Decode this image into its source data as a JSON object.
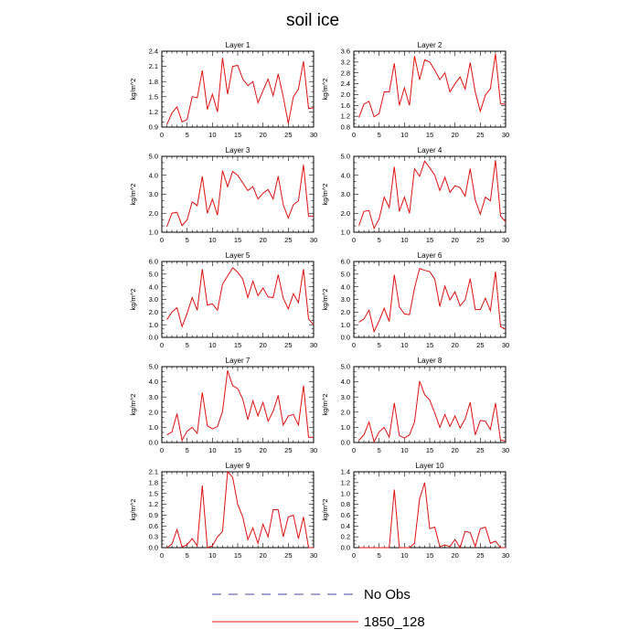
{
  "title": "soil ice",
  "legend": [
    {
      "label": "No Obs",
      "color": "#4a4ab0",
      "dash": true
    },
    {
      "label": "1850_128",
      "color": "#e01010",
      "dash": false
    }
  ],
  "chart_data": [
    {
      "type": "line",
      "title": "Layer 1",
      "ylabel": "kg/m^2",
      "xlim": [
        0,
        30
      ],
      "ylim": [
        0.9,
        2.4
      ],
      "xticks": [
        0,
        5,
        10,
        15,
        20,
        25,
        30
      ],
      "yticks": [
        0.9,
        1.2,
        1.5,
        1.8,
        2.1,
        2.4
      ],
      "ytick_labels": [
        "0.9",
        "1.2",
        "1.5",
        "1.8",
        "2.1",
        "2.4"
      ],
      "series": [
        {
          "name": "1850_128",
          "x": [
            1,
            2,
            3,
            4,
            5,
            6,
            7,
            8,
            9,
            10,
            11,
            12,
            13,
            14,
            15,
            16,
            17,
            18,
            19,
            20,
            21,
            22,
            23,
            24,
            25,
            26,
            27,
            28,
            29,
            30
          ],
          "values": [
            0.95,
            1.18,
            1.3,
            1.0,
            1.05,
            1.5,
            1.48,
            2.02,
            1.25,
            1.55,
            1.2,
            2.27,
            1.55,
            2.1,
            2.12,
            1.85,
            1.72,
            1.8,
            1.38,
            1.62,
            1.85,
            1.52,
            1.95,
            1.5,
            0.97,
            1.5,
            1.65,
            2.2,
            1.27,
            1.28
          ]
        }
      ]
    },
    {
      "type": "line",
      "title": "Layer 2",
      "ylabel": "kg/m^2",
      "xlim": [
        0,
        30
      ],
      "ylim": [
        0.8,
        3.6
      ],
      "xticks": [
        0,
        5,
        10,
        15,
        20,
        25,
        30
      ],
      "yticks": [
        0.8,
        1.2,
        1.6,
        2.0,
        2.4,
        2.8,
        3.2,
        3.6
      ],
      "ytick_labels": [
        "0.8",
        "1.2",
        "1.6",
        "2.0",
        "2.4",
        "2.8",
        "3.2",
        "3.6"
      ],
      "series": [
        {
          "name": "1850_128",
          "x": [
            1,
            2,
            3,
            4,
            5,
            6,
            7,
            8,
            9,
            10,
            11,
            12,
            13,
            14,
            15,
            16,
            17,
            18,
            19,
            20,
            21,
            22,
            23,
            24,
            25,
            26,
            27,
            28,
            29,
            30
          ],
          "values": [
            1.15,
            1.65,
            1.75,
            1.18,
            1.3,
            2.1,
            2.1,
            3.15,
            1.6,
            2.25,
            1.6,
            3.42,
            2.55,
            3.28,
            3.2,
            2.9,
            2.55,
            2.8,
            2.1,
            2.4,
            2.65,
            2.2,
            3.18,
            2.1,
            1.38,
            1.98,
            2.22,
            3.5,
            1.65,
            1.65
          ]
        }
      ]
    },
    {
      "type": "line",
      "title": "Layer 3",
      "ylabel": "kg/m^2",
      "xlim": [
        0,
        30
      ],
      "ylim": [
        1.0,
        5.0
      ],
      "xticks": [
        0,
        5,
        10,
        15,
        20,
        25,
        30
      ],
      "yticks": [
        1.0,
        2.0,
        3.0,
        4.0,
        5.0
      ],
      "ytick_labels": [
        "1.0",
        "2.0",
        "3.0",
        "4.0",
        "5.0"
      ],
      "series": [
        {
          "name": "1850_128",
          "x": [
            1,
            2,
            3,
            4,
            5,
            6,
            7,
            8,
            9,
            10,
            11,
            12,
            13,
            14,
            15,
            16,
            17,
            18,
            19,
            20,
            21,
            22,
            23,
            24,
            25,
            26,
            27,
            28,
            29,
            30
          ],
          "values": [
            1.3,
            2.0,
            2.05,
            1.35,
            1.65,
            2.6,
            2.4,
            3.95,
            2.0,
            2.75,
            1.9,
            4.25,
            3.4,
            4.2,
            4.0,
            3.6,
            3.2,
            3.4,
            2.75,
            3.05,
            3.25,
            2.75,
            3.95,
            2.45,
            1.75,
            2.45,
            2.65,
            4.55,
            1.85,
            1.85
          ]
        }
      ]
    },
    {
      "type": "line",
      "title": "Layer 4",
      "ylabel": "kg/m^2",
      "xlim": [
        0,
        30
      ],
      "ylim": [
        1.0,
        5.0
      ],
      "xticks": [
        0,
        5,
        10,
        15,
        20,
        25,
        30
      ],
      "yticks": [
        1.0,
        2.0,
        3.0,
        4.0,
        5.0
      ],
      "ytick_labels": [
        "1.0",
        "2.0",
        "3.0",
        "4.0",
        "5.0"
      ],
      "series": [
        {
          "name": "1850_128",
          "x": [
            1,
            2,
            3,
            4,
            5,
            6,
            7,
            8,
            9,
            10,
            11,
            12,
            13,
            14,
            15,
            16,
            17,
            18,
            19,
            20,
            21,
            22,
            23,
            24,
            25,
            26,
            27,
            28,
            29,
            30
          ],
          "values": [
            1.35,
            2.1,
            2.15,
            1.2,
            1.7,
            2.85,
            2.3,
            4.45,
            2.1,
            2.85,
            2.0,
            4.35,
            3.95,
            4.75,
            4.4,
            4.0,
            3.2,
            3.9,
            3.1,
            3.45,
            3.35,
            2.9,
            4.35,
            2.7,
            1.95,
            2.85,
            2.65,
            4.8,
            1.85,
            1.55
          ]
        }
      ]
    },
    {
      "type": "line",
      "title": "Layer 5",
      "ylabel": "kg/m^2",
      "xlim": [
        0,
        30
      ],
      "ylim": [
        0.0,
        6.0
      ],
      "xticks": [
        0,
        5,
        10,
        15,
        20,
        25,
        30
      ],
      "yticks": [
        0.0,
        1.0,
        2.0,
        3.0,
        4.0,
        5.0,
        6.0
      ],
      "ytick_labels": [
        "0.0",
        "1.0",
        "2.0",
        "3.0",
        "4.0",
        "5.0",
        "6.0"
      ],
      "series": [
        {
          "name": "1850_128",
          "x": [
            1,
            2,
            3,
            4,
            5,
            6,
            7,
            8,
            9,
            10,
            11,
            12,
            13,
            14,
            15,
            16,
            17,
            18,
            19,
            20,
            21,
            22,
            23,
            24,
            25,
            26,
            27,
            28,
            29,
            30
          ],
          "values": [
            1.4,
            2.0,
            2.35,
            0.85,
            1.9,
            3.15,
            2.15,
            5.4,
            2.55,
            2.65,
            2.15,
            4.2,
            4.85,
            5.5,
            5.15,
            4.6,
            3.15,
            4.45,
            3.3,
            3.9,
            3.2,
            3.15,
            4.95,
            3.1,
            2.25,
            3.45,
            2.75,
            5.4,
            1.45,
            1.0
          ]
        }
      ]
    },
    {
      "type": "line",
      "title": "Layer 6",
      "ylabel": "kg/m^2",
      "xlim": [
        0,
        30
      ],
      "ylim": [
        0.0,
        6.0
      ],
      "xticks": [
        0,
        5,
        10,
        15,
        20,
        25,
        30
      ],
      "yticks": [
        0.0,
        1.0,
        2.0,
        3.0,
        4.0,
        5.0,
        6.0
      ],
      "ytick_labels": [
        "0.0",
        "1.0",
        "2.0",
        "3.0",
        "4.0",
        "5.0",
        "6.0"
      ],
      "series": [
        {
          "name": "1850_128",
          "x": [
            1,
            2,
            3,
            4,
            5,
            6,
            7,
            8,
            9,
            10,
            11,
            12,
            13,
            14,
            15,
            16,
            17,
            18,
            19,
            20,
            21,
            22,
            23,
            24,
            25,
            26,
            27,
            28,
            29,
            30
          ],
          "values": [
            1.2,
            1.45,
            2.15,
            0.45,
            1.3,
            2.3,
            1.25,
            4.95,
            2.4,
            1.85,
            1.8,
            3.9,
            5.45,
            5.3,
            5.2,
            4.6,
            2.45,
            4.05,
            2.95,
            3.6,
            2.5,
            2.95,
            4.65,
            2.2,
            2.2,
            3.1,
            2.1,
            5.2,
            0.85,
            0.65
          ]
        }
      ]
    },
    {
      "type": "line",
      "title": "Layer 7",
      "ylabel": "kg/m^2",
      "xlim": [
        0,
        30
      ],
      "ylim": [
        0.0,
        5.0
      ],
      "xticks": [
        0,
        5,
        10,
        15,
        20,
        25,
        30
      ],
      "yticks": [
        0.0,
        1.0,
        2.0,
        3.0,
        4.0,
        5.0
      ],
      "ytick_labels": [
        "0.0",
        "1.0",
        "2.0",
        "3.0",
        "4.0",
        "5.0"
      ],
      "series": [
        {
          "name": "1850_128",
          "x": [
            1,
            2,
            3,
            4,
            5,
            6,
            7,
            8,
            9,
            10,
            11,
            12,
            13,
            14,
            15,
            16,
            17,
            18,
            19,
            20,
            21,
            22,
            23,
            24,
            25,
            26,
            27,
            28,
            29,
            30
          ],
          "values": [
            0.5,
            0.7,
            1.9,
            0.15,
            0.75,
            1.0,
            0.6,
            3.3,
            1.1,
            0.9,
            1.05,
            2.05,
            4.75,
            3.75,
            3.55,
            2.85,
            1.5,
            2.75,
            1.75,
            2.65,
            1.4,
            2.05,
            3.1,
            1.15,
            1.75,
            1.85,
            1.15,
            3.75,
            0.35,
            0.35
          ]
        }
      ]
    },
    {
      "type": "line",
      "title": "Layer 8",
      "ylabel": "kg/m^2",
      "xlim": [
        0,
        30
      ],
      "ylim": [
        0.0,
        5.0
      ],
      "xticks": [
        0,
        5,
        10,
        15,
        20,
        25,
        30
      ],
      "yticks": [
        0.0,
        1.0,
        2.0,
        3.0,
        4.0,
        5.0
      ],
      "ytick_labels": [
        "0.0",
        "1.0",
        "2.0",
        "3.0",
        "4.0",
        "5.0"
      ],
      "series": [
        {
          "name": "1850_128",
          "x": [
            1,
            2,
            3,
            4,
            5,
            6,
            7,
            8,
            9,
            10,
            11,
            12,
            13,
            14,
            15,
            16,
            17,
            18,
            19,
            20,
            21,
            22,
            23,
            24,
            25,
            26,
            27,
            28,
            29,
            30
          ],
          "values": [
            0.15,
            0.5,
            1.35,
            0.05,
            0.7,
            1.0,
            0.35,
            2.6,
            0.45,
            0.3,
            0.5,
            1.35,
            4.05,
            3.15,
            2.8,
            1.95,
            1.0,
            1.85,
            1.05,
            1.75,
            0.95,
            1.55,
            2.65,
            0.5,
            1.45,
            1.4,
            0.85,
            2.6,
            0.15,
            0.1
          ]
        }
      ]
    },
    {
      "type": "line",
      "title": "Layer 9",
      "ylabel": "kg/m^2",
      "xlim": [
        0,
        30
      ],
      "ylim": [
        0.0,
        2.1
      ],
      "xticks": [
        0,
        5,
        10,
        15,
        20,
        25,
        30
      ],
      "yticks": [
        0.0,
        0.3,
        0.6,
        0.9,
        1.2,
        1.5,
        1.8,
        2.1
      ],
      "ytick_labels": [
        "0.0",
        "0.3",
        "0.6",
        "0.9",
        "1.2",
        "1.5",
        "1.8",
        "2.1"
      ],
      "series": [
        {
          "name": "1850_128",
          "x": [
            1,
            2,
            3,
            4,
            5,
            6,
            7,
            8,
            9,
            10,
            11,
            12,
            13,
            14,
            15,
            16,
            17,
            18,
            19,
            20,
            21,
            22,
            23,
            24,
            25,
            26,
            27,
            28,
            29,
            30
          ],
          "values": [
            0.0,
            0.1,
            0.5,
            0.02,
            0.08,
            0.25,
            0.05,
            1.72,
            0.0,
            0.05,
            0.3,
            0.45,
            2.1,
            1.95,
            1.2,
            0.85,
            0.22,
            0.55,
            0.12,
            0.65,
            0.3,
            1.05,
            1.05,
            0.3,
            0.85,
            0.9,
            0.25,
            0.85,
            0.0,
            0.0
          ]
        }
      ]
    },
    {
      "type": "line",
      "title": "Layer 10",
      "ylabel": "kg/m^2",
      "xlim": [
        0,
        30
      ],
      "ylim": [
        0.0,
        1.4
      ],
      "xticks": [
        0,
        5,
        10,
        15,
        20,
        25,
        30
      ],
      "yticks": [
        0.0,
        0.2,
        0.4,
        0.6,
        0.8,
        1.0,
        1.2,
        1.4
      ],
      "ytick_labels": [
        "0.0",
        "0.2",
        "0.4",
        "0.6",
        "0.8",
        "1.0",
        "1.2",
        "1.4"
      ],
      "series": [
        {
          "name": "1850_128",
          "x": [
            1,
            2,
            3,
            4,
            5,
            6,
            7,
            8,
            9,
            10,
            11,
            12,
            13,
            14,
            15,
            16,
            17,
            18,
            19,
            20,
            21,
            22,
            23,
            24,
            25,
            26,
            27,
            28,
            29,
            30
          ],
          "values": [
            0.0,
            0.0,
            0.0,
            0.0,
            0.0,
            0.0,
            0.0,
            1.07,
            0.0,
            0.0,
            0.0,
            0.08,
            0.9,
            1.2,
            0.35,
            0.38,
            0.02,
            0.05,
            0.02,
            0.15,
            0.0,
            0.3,
            0.28,
            0.02,
            0.35,
            0.38,
            0.08,
            0.12,
            0.0,
            0.0
          ]
        }
      ]
    }
  ]
}
